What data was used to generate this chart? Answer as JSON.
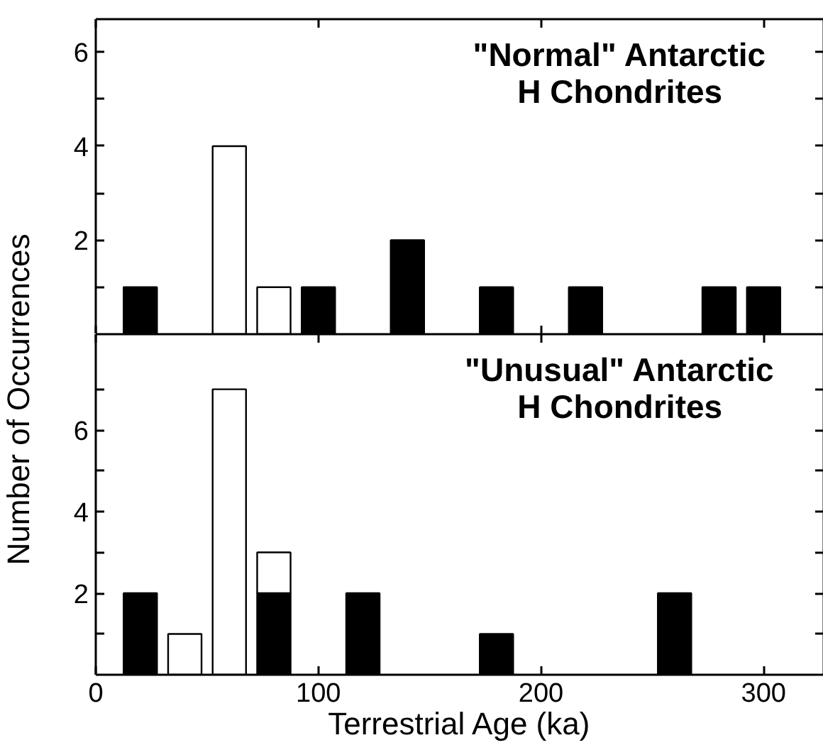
{
  "chart_data": [
    {
      "type": "bar",
      "title": "\"Normal\" Antarctic\nH Chondrites",
      "ylabel": "Number of Occurrences",
      "stacked": true,
      "x": [
        20,
        60,
        80,
        100,
        140,
        180,
        220,
        280,
        300
      ],
      "series": [
        {
          "color": "#000000",
          "values": [
            1,
            null,
            null,
            1,
            2,
            1,
            1,
            1,
            1
          ]
        },
        {
          "color": "#ffffff",
          "values": [
            null,
            4,
            1,
            null,
            null,
            null,
            null,
            null,
            null
          ]
        }
      ],
      "xlim": [
        0,
        327
      ],
      "ylim": [
        0,
        6.7
      ],
      "xticks": [
        0,
        100,
        200,
        300
      ],
      "yticks": [
        {
          "value": 1,
          "label": null
        },
        2,
        {
          "value": 3,
          "label": null
        },
        4,
        {
          "value": 5,
          "label": null
        },
        6
      ],
      "tick_labels": "y"
    },
    {
      "type": "bar",
      "title": "\"Unusual\" Antarctic\nH Chondrites",
      "xlabel": "Terrestrial Age (ka)",
      "stacked": true,
      "x": [
        20,
        40,
        60,
        80,
        120,
        180,
        260
      ],
      "series": [
        {
          "color": "#000000",
          "values": [
            2,
            null,
            null,
            2,
            2,
            1,
            2
          ]
        },
        {
          "color": "#ffffff",
          "values": [
            null,
            1,
            7,
            1,
            null,
            null,
            null
          ]
        }
      ],
      "xlim": [
        0,
        327
      ],
      "ylim": [
        0,
        8.35
      ],
      "xticks": [
        0,
        100,
        200,
        300
      ],
      "yticks": [
        {
          "value": 1,
          "label": null
        },
        2,
        {
          "value": 3,
          "label": null
        },
        4,
        {
          "value": 5,
          "label": null
        },
        6,
        {
          "value": 7,
          "label": null
        }
      ]
    }
  ]
}
